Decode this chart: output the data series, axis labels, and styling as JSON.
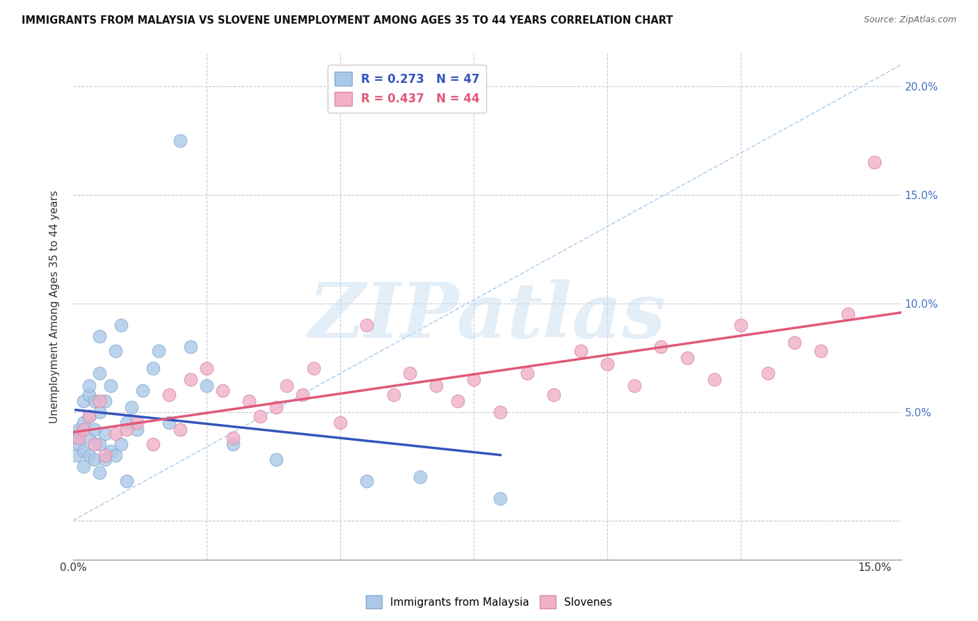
{
  "title": "IMMIGRANTS FROM MALAYSIA VS SLOVENE UNEMPLOYMENT AMONG AGES 35 TO 44 YEARS CORRELATION CHART",
  "source": "Source: ZipAtlas.com",
  "ylabel": "Unemployment Among Ages 35 to 44 years",
  "xlim": [
    0.0,
    0.155
  ],
  "ylim": [
    -0.018,
    0.215
  ],
  "xtick_positions": [
    0.0,
    0.15
  ],
  "xticklabels": [
    "0.0%",
    "15.0%"
  ],
  "yticks": [
    0.0,
    0.05,
    0.1,
    0.15,
    0.2
  ],
  "yticklabels": [
    "",
    "5.0%",
    "10.0%",
    "15.0%",
    "20.0%"
  ],
  "grid_color": "#c8c8d8",
  "background_color": "#ffffff",
  "series1_color": "#aac8e8",
  "series1_edge": "#88aad0",
  "series1_label": "Immigrants from Malaysia",
  "series1_R": 0.273,
  "series1_N": 47,
  "series1_line_color": "#3355bb",
  "series2_color": "#f0b0c8",
  "series2_edge": "#d888a8",
  "series2_label": "Slovenes",
  "series2_R": 0.437,
  "series2_N": 44,
  "series2_line_color": "#e05878",
  "watermark_color": "#c8dff0",
  "watermark": "ZIPatlas",
  "diagonal_color": "#aaccee",
  "malaysia_x": [
    0.0005,
    0.0008,
    0.001,
    0.001,
    0.001,
    0.002,
    0.002,
    0.002,
    0.002,
    0.003,
    0.003,
    0.003,
    0.003,
    0.003,
    0.004,
    0.004,
    0.004,
    0.005,
    0.005,
    0.005,
    0.005,
    0.005,
    0.006,
    0.006,
    0.006,
    0.007,
    0.007,
    0.008,
    0.008,
    0.009,
    0.009,
    0.01,
    0.01,
    0.011,
    0.012,
    0.013,
    0.015,
    0.016,
    0.018,
    0.02,
    0.022,
    0.025,
    0.03,
    0.038,
    0.055,
    0.065,
    0.08
  ],
  "malaysia_y": [
    0.03,
    0.038,
    0.04,
    0.035,
    0.042,
    0.032,
    0.055,
    0.045,
    0.025,
    0.038,
    0.048,
    0.058,
    0.03,
    0.062,
    0.028,
    0.042,
    0.055,
    0.022,
    0.035,
    0.05,
    0.068,
    0.085,
    0.028,
    0.04,
    0.055,
    0.032,
    0.062,
    0.03,
    0.078,
    0.035,
    0.09,
    0.018,
    0.045,
    0.052,
    0.042,
    0.06,
    0.07,
    0.078,
    0.045,
    0.175,
    0.08,
    0.062,
    0.035,
    0.028,
    0.018,
    0.02,
    0.01
  ],
  "slovene_x": [
    0.001,
    0.002,
    0.003,
    0.004,
    0.005,
    0.006,
    0.008,
    0.01,
    0.012,
    0.015,
    0.018,
    0.02,
    0.022,
    0.025,
    0.028,
    0.03,
    0.033,
    0.035,
    0.038,
    0.04,
    0.043,
    0.045,
    0.05,
    0.055,
    0.06,
    0.063,
    0.068,
    0.072,
    0.075,
    0.08,
    0.085,
    0.09,
    0.095,
    0.1,
    0.105,
    0.11,
    0.115,
    0.12,
    0.125,
    0.13,
    0.135,
    0.14,
    0.145,
    0.15
  ],
  "slovene_y": [
    0.038,
    0.042,
    0.048,
    0.035,
    0.055,
    0.03,
    0.04,
    0.042,
    0.045,
    0.035,
    0.058,
    0.042,
    0.065,
    0.07,
    0.06,
    0.038,
    0.055,
    0.048,
    0.052,
    0.062,
    0.058,
    0.07,
    0.045,
    0.09,
    0.058,
    0.068,
    0.062,
    0.055,
    0.065,
    0.05,
    0.068,
    0.058,
    0.078,
    0.072,
    0.062,
    0.08,
    0.075,
    0.065,
    0.09,
    0.068,
    0.082,
    0.078,
    0.095,
    0.165
  ]
}
